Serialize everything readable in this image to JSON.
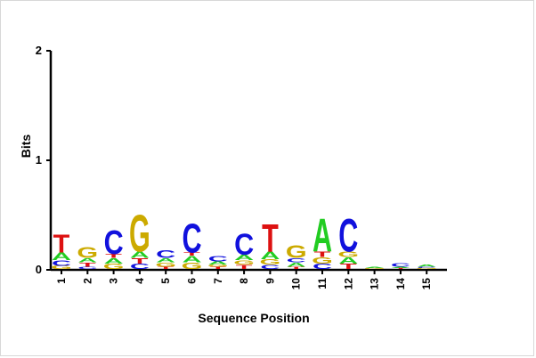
{
  "chart_data": {
    "type": "sequence-logo",
    "xlabel": "Sequence Position",
    "ylabel": "Bits",
    "ylim": [
      0,
      2
    ],
    "yticks": [
      "0",
      "1",
      "2"
    ],
    "positions": [
      "1",
      "2",
      "3",
      "4",
      "5",
      "6",
      "7",
      "8",
      "9",
      "10",
      "11",
      "12",
      "13",
      "14",
      "15"
    ],
    "letter_colors": {
      "A": "#22cc22",
      "C": "#1111dd",
      "G": "#ccaa00",
      "T": "#dd1111"
    },
    "stacks": [
      [
        {
          "letter": "G",
          "bits": 0.03
        },
        {
          "letter": "C",
          "bits": 0.05
        },
        {
          "letter": "A",
          "bits": 0.07
        },
        {
          "letter": "T",
          "bits": 0.17
        }
      ],
      [
        {
          "letter": "C",
          "bits": 0.02
        },
        {
          "letter": "T",
          "bits": 0.04
        },
        {
          "letter": "A",
          "bits": 0.04
        },
        {
          "letter": "G",
          "bits": 0.1
        }
      ],
      [
        {
          "letter": "G",
          "bits": 0.05
        },
        {
          "letter": "A",
          "bits": 0.05
        },
        {
          "letter": "T",
          "bits": 0.04
        },
        {
          "letter": "C",
          "bits": 0.22
        }
      ],
      [
        {
          "letter": "C",
          "bits": 0.05
        },
        {
          "letter": "T",
          "bits": 0.05
        },
        {
          "letter": "A",
          "bits": 0.06
        },
        {
          "letter": "G",
          "bits": 0.35
        }
      ],
      [
        {
          "letter": "T",
          "bits": 0.02
        },
        {
          "letter": "G",
          "bits": 0.04
        },
        {
          "letter": "A",
          "bits": 0.04
        },
        {
          "letter": "C",
          "bits": 0.07
        }
      ],
      [
        {
          "letter": "G",
          "bits": 0.06
        },
        {
          "letter": "A",
          "bits": 0.06
        },
        {
          "letter": "T",
          "bits": 0.03
        },
        {
          "letter": "C",
          "bits": 0.27
        }
      ],
      [
        {
          "letter": "T",
          "bits": 0.02
        },
        {
          "letter": "G",
          "bits": 0.02
        },
        {
          "letter": "A",
          "bits": 0.03
        },
        {
          "letter": "C",
          "bits": 0.05
        }
      ],
      [
        {
          "letter": "T",
          "bits": 0.04
        },
        {
          "letter": "G",
          "bits": 0.04
        },
        {
          "letter": "A",
          "bits": 0.05
        },
        {
          "letter": "C",
          "bits": 0.2
        }
      ],
      [
        {
          "letter": "C",
          "bits": 0.04
        },
        {
          "letter": "G",
          "bits": 0.05
        },
        {
          "letter": "A",
          "bits": 0.07
        },
        {
          "letter": "T",
          "bits": 0.26
        }
      ],
      [
        {
          "letter": "T",
          "bits": 0.02
        },
        {
          "letter": "A",
          "bits": 0.04
        },
        {
          "letter": "C",
          "bits": 0.04
        },
        {
          "letter": "G",
          "bits": 0.12
        }
      ],
      [
        {
          "letter": "C",
          "bits": 0.05
        },
        {
          "letter": "G",
          "bits": 0.06
        },
        {
          "letter": "T",
          "bits": 0.05
        },
        {
          "letter": "A",
          "bits": 0.31
        }
      ],
      [
        {
          "letter": "T",
          "bits": 0.05
        },
        {
          "letter": "A",
          "bits": 0.06
        },
        {
          "letter": "G",
          "bits": 0.05
        },
        {
          "letter": "C",
          "bits": 0.31
        }
      ],
      [
        {
          "letter": "G",
          "bits": 0.01
        },
        {
          "letter": "A",
          "bits": 0.01
        }
      ],
      [
        {
          "letter": "T",
          "bits": 0.01
        },
        {
          "letter": "A",
          "bits": 0.01
        },
        {
          "letter": "C",
          "bits": 0.03
        }
      ],
      [
        {
          "letter": "G",
          "bits": 0.01
        },
        {
          "letter": "C",
          "bits": 0.01
        },
        {
          "letter": "A",
          "bits": 0.02
        }
      ]
    ]
  }
}
